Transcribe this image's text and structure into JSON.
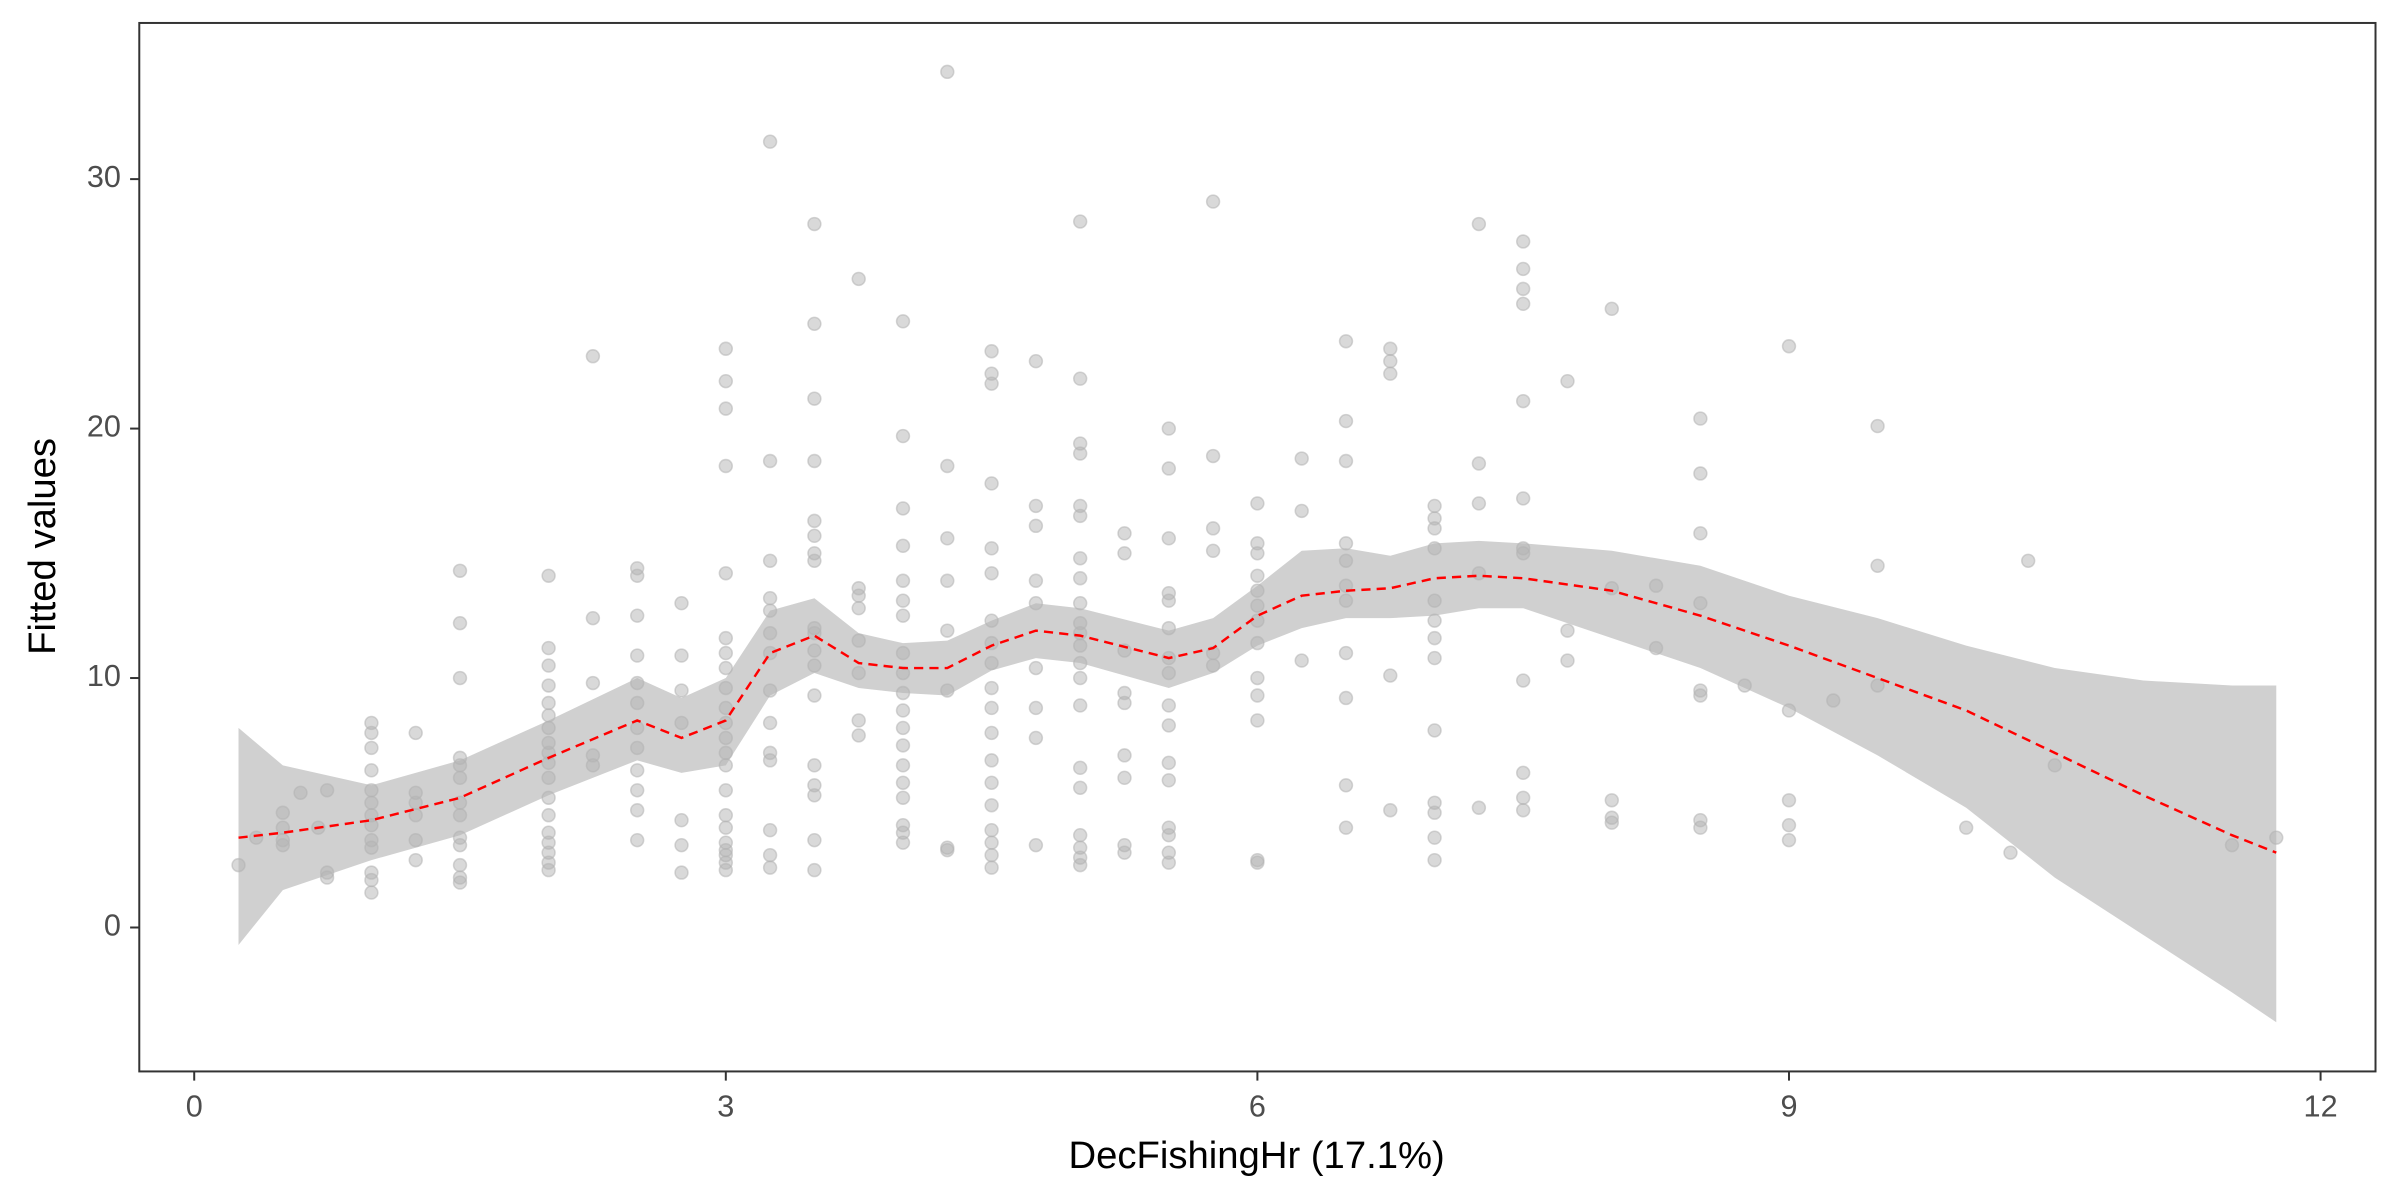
{
  "chart_data": {
    "type": "scatter",
    "x_label": "DecFishingHr  (17.1%)",
    "y_label": "Fitted values",
    "xlim": [
      -0.31,
      12.31
    ],
    "ylim": [
      -5.77,
      36.26
    ],
    "xticks": [
      0,
      3,
      6,
      9,
      12
    ],
    "yticks": [
      0,
      10,
      20,
      30
    ],
    "points": {
      "color": "#b3b3b3",
      "x": [
        0.25,
        0.35,
        0.5,
        0.5,
        0.5,
        0.5,
        0.6,
        0.7,
        0.75,
        0.75,
        0.75,
        1,
        1,
        1,
        1,
        1,
        1,
        1,
        1,
        1,
        1,
        1,
        1,
        1,
        1.25,
        1.25,
        1.25,
        1.25,
        1.25,
        1.25,
        1.5,
        1.5,
        1.5,
        1.5,
        1.5,
        1.5,
        1.5,
        1.5,
        1.5,
        1.5,
        1.5,
        1.5,
        1.5,
        2,
        2,
        2,
        2,
        2,
        2,
        2,
        2,
        2,
        2,
        2,
        2,
        2,
        2,
        2,
        2,
        2,
        2,
        2.25,
        2.25,
        2.25,
        2.25,
        2.25,
        2.5,
        2.5,
        2.5,
        2.5,
        2.5,
        2.5,
        2.5,
        2.5,
        2.5,
        2.5,
        2.5,
        2.5,
        2.75,
        2.75,
        2.75,
        2.75,
        2.75,
        2.75,
        2.75,
        3,
        3,
        3,
        3,
        3,
        3,
        3,
        3,
        3,
        3,
        3,
        3,
        3,
        3,
        3,
        3,
        3,
        3,
        3,
        3,
        3,
        3,
        3.25,
        3.25,
        3.25,
        3.25,
        3.25,
        3.25,
        3.25,
        3.25,
        3.25,
        3.25,
        3.25,
        3.25,
        3.25,
        3.25,
        3.5,
        3.5,
        3.5,
        3.5,
        3.5,
        3.5,
        3.5,
        3.5,
        3.5,
        3.5,
        3.5,
        3.5,
        3.5,
        3.5,
        3.5,
        3.5,
        3.5,
        3.5,
        3.75,
        3.75,
        3.75,
        3.75,
        3.75,
        3.75,
        3.75,
        3.75,
        4,
        4,
        4,
        4,
        4,
        4,
        4,
        4,
        4,
        4,
        4,
        4,
        4,
        4,
        4,
        4,
        4,
        4,
        4,
        4.25,
        4.25,
        4.25,
        4.25,
        4.25,
        4.25,
        4.25,
        4.25,
        4.5,
        4.5,
        4.5,
        4.5,
        4.5,
        4.5,
        4.5,
        4.5,
        4.5,
        4.5,
        4.5,
        4.5,
        4.5,
        4.5,
        4.5,
        4.5,
        4.5,
        4.5,
        4.5,
        4.75,
        4.75,
        4.75,
        4.75,
        4.75,
        4.75,
        4.75,
        4.75,
        4.75,
        5,
        5,
        5,
        5,
        5,
        5,
        5,
        5,
        5,
        5,
        5,
        5,
        5,
        5,
        5,
        5,
        5,
        5,
        5,
        5,
        5,
        5.25,
        5.25,
        5.25,
        5.25,
        5.25,
        5.25,
        5.25,
        5.25,
        5.25,
        5.5,
        5.5,
        5.5,
        5.5,
        5.5,
        5.5,
        5.5,
        5.5,
        5.5,
        5.5,
        5.5,
        5.5,
        5.5,
        5.5,
        5.5,
        5.5,
        5.75,
        5.75,
        5.75,
        5.75,
        5.75,
        5.75,
        6,
        6,
        6,
        6,
        6,
        6,
        6,
        6,
        6,
        6,
        6,
        6,
        6,
        6.25,
        6.25,
        6.25,
        6.5,
        6.5,
        6.5,
        6.5,
        6.5,
        6.5,
        6.5,
        6.5,
        6.5,
        6.5,
        6.5,
        6.75,
        6.75,
        6.75,
        6.75,
        6.75,
        7,
        7,
        7,
        7,
        7,
        7,
        7,
        7,
        7,
        7,
        7,
        7,
        7,
        7.25,
        7.25,
        7.25,
        7.25,
        7.25,
        7.5,
        7.5,
        7.5,
        7.5,
        7.5,
        7.5,
        7.5,
        7.5,
        7.5,
        7.5,
        7.5,
        7.5,
        7.75,
        7.75,
        7.75,
        8,
        8,
        8,
        8,
        8,
        8.25,
        8.25,
        8.5,
        8.5,
        8.5,
        8.5,
        8.5,
        8.5,
        8.5,
        8.5,
        8.75,
        9,
        9,
        9,
        9,
        9,
        9.25,
        9.5,
        9.5,
        9.5,
        10,
        10.25,
        10.35,
        10.5,
        11.5,
        11.75
      ],
      "y": [
        2.5,
        3.6,
        3.3,
        3.5,
        4.0,
        4.6,
        5.4,
        4.0,
        2.0,
        2.2,
        5.5,
        1.4,
        1.9,
        2.2,
        3.2,
        3.5,
        4.1,
        4.5,
        5.0,
        5.5,
        6.3,
        7.2,
        7.8,
        8.2,
        2.7,
        3.5,
        4.5,
        5.0,
        5.4,
        7.8,
        1.8,
        2.0,
        2.5,
        3.3,
        3.6,
        4.5,
        5.0,
        6.0,
        6.5,
        6.8,
        10.0,
        12.2,
        14.3,
        2.3,
        2.6,
        3.0,
        3.4,
        3.8,
        4.5,
        5.2,
        6.0,
        6.6,
        7.0,
        7.4,
        8.0,
        8.5,
        9.0,
        9.7,
        10.5,
        11.2,
        14.1,
        6.5,
        6.9,
        9.8,
        12.4,
        22.9,
        3.5,
        4.7,
        5.5,
        6.3,
        7.2,
        8.0,
        9.0,
        9.8,
        10.9,
        12.5,
        14.1,
        14.4,
        2.2,
        3.3,
        4.3,
        8.2,
        9.5,
        10.9,
        13.0,
        2.3,
        2.6,
        2.9,
        3.1,
        3.4,
        4.0,
        4.5,
        5.5,
        6.5,
        7.0,
        7.6,
        8.2,
        8.8,
        9.6,
        10.4,
        11.0,
        11.6,
        14.2,
        18.5,
        20.8,
        21.9,
        23.2,
        2.4,
        2.9,
        3.9,
        6.7,
        7.0,
        8.2,
        9.5,
        11.0,
        11.8,
        12.7,
        13.2,
        14.7,
        18.7,
        31.5,
        2.3,
        3.5,
        5.3,
        5.7,
        6.5,
        9.3,
        10.5,
        11.1,
        11.8,
        12.0,
        14.7,
        15.0,
        15.7,
        16.3,
        18.7,
        21.2,
        24.2,
        28.2,
        7.7,
        8.3,
        10.2,
        11.5,
        12.8,
        13.3,
        13.6,
        26.0,
        3.4,
        3.8,
        4.1,
        5.2,
        5.8,
        6.5,
        7.3,
        8.0,
        8.7,
        9.4,
        10.2,
        11.0,
        12.5,
        13.1,
        13.9,
        15.3,
        16.8,
        19.7,
        24.3,
        3.1,
        3.2,
        9.5,
        11.9,
        13.9,
        15.6,
        18.5,
        34.3,
        2.4,
        2.9,
        3.4,
        3.9,
        4.9,
        5.8,
        6.7,
        7.8,
        8.8,
        9.6,
        10.6,
        11.4,
        12.3,
        14.2,
        15.2,
        17.8,
        21.8,
        22.2,
        23.1,
        3.3,
        7.6,
        8.8,
        10.4,
        13.0,
        13.9,
        16.1,
        16.9,
        22.7,
        2.5,
        2.8,
        3.2,
        3.7,
        5.6,
        6.4,
        8.9,
        10.0,
        10.6,
        11.3,
        11.8,
        12.2,
        13.0,
        14.0,
        14.8,
        16.5,
        16.9,
        19.0,
        19.4,
        22.0,
        28.3,
        3.0,
        3.3,
        6.0,
        6.9,
        9.0,
        9.4,
        11.1,
        15.0,
        15.8,
        2.6,
        3.0,
        3.7,
        4.0,
        5.9,
        6.6,
        8.1,
        8.9,
        10.2,
        10.8,
        12.0,
        13.1,
        13.4,
        15.6,
        18.4,
        20.0,
        10.5,
        11.0,
        15.1,
        16.0,
        18.9,
        29.1,
        2.6,
        2.7,
        8.3,
        9.3,
        10.0,
        11.4,
        12.3,
        12.9,
        13.5,
        14.1,
        15.0,
        15.4,
        17.0,
        10.7,
        16.7,
        18.8,
        4.0,
        5.7,
        9.2,
        11.0,
        13.1,
        13.7,
        14.7,
        15.4,
        18.7,
        20.3,
        23.5,
        4.7,
        10.1,
        22.2,
        22.7,
        23.2,
        2.7,
        3.6,
        4.6,
        5.0,
        7.9,
        10.8,
        11.6,
        12.3,
        13.1,
        15.2,
        16.0,
        16.4,
        16.9,
        4.8,
        14.2,
        17.0,
        18.6,
        28.2,
        4.7,
        5.2,
        6.2,
        9.9,
        15.0,
        15.2,
        17.2,
        21.1,
        25.0,
        25.6,
        26.4,
        27.5,
        10.7,
        11.9,
        21.9,
        4.2,
        4.4,
        5.1,
        13.6,
        24.8,
        11.2,
        13.7,
        4.0,
        4.3,
        9.3,
        9.5,
        13.0,
        15.8,
        18.2,
        20.4,
        9.7,
        3.5,
        4.1,
        5.1,
        8.7,
        23.3,
        9.1,
        9.7,
        14.5,
        20.1,
        4.0,
        3.0,
        14.7,
        6.5,
        3.3,
        3.6
      ]
    },
    "smooth": {
      "color": "#ff0000",
      "band_color": "#d0d0d0",
      "x": [
        0.25,
        0.5,
        1,
        1.5,
        2,
        2.5,
        2.75,
        3,
        3.25,
        3.5,
        3.75,
        4,
        4.25,
        4.5,
        4.75,
        5,
        5.5,
        5.75,
        6,
        6.25,
        6.5,
        6.75,
        7,
        7.25,
        7.5,
        8,
        8.5,
        9,
        9.5,
        10,
        10.5,
        11,
        11.5,
        11.75
      ],
      "y": [
        3.6,
        3.8,
        4.3,
        5.2,
        6.8,
        8.3,
        7.6,
        8.3,
        11.0,
        11.7,
        10.6,
        10.4,
        10.4,
        11.3,
        11.9,
        11.7,
        10.8,
        11.2,
        12.5,
        13.3,
        13.5,
        13.6,
        14.0,
        14.1,
        14.0,
        13.5,
        12.5,
        11.3,
        10.0,
        8.7,
        7.0,
        5.3,
        3.7,
        3.0
      ],
      "lower": [
        -0.7,
        1.5,
        2.7,
        3.7,
        5.3,
        6.7,
        6.2,
        6.5,
        9.3,
        10.2,
        9.6,
        9.4,
        9.3,
        10.3,
        10.8,
        10.6,
        9.6,
        10.2,
        11.3,
        12.0,
        12.4,
        12.4,
        12.5,
        12.8,
        12.8,
        11.6,
        10.4,
        8.8,
        6.9,
        4.8,
        2.0,
        -0.3,
        -2.6,
        -3.8
      ],
      "upper": [
        8.0,
        6.5,
        5.7,
        6.7,
        8.3,
        10.0,
        9.2,
        10.0,
        12.7,
        13.2,
        11.8,
        11.4,
        11.5,
        12.3,
        13.0,
        12.8,
        11.9,
        12.4,
        13.7,
        15.1,
        15.2,
        14.9,
        15.4,
        15.5,
        15.4,
        15.1,
        14.5,
        13.3,
        12.4,
        11.3,
        10.4,
        9.9,
        9.7,
        9.7
      ]
    }
  }
}
